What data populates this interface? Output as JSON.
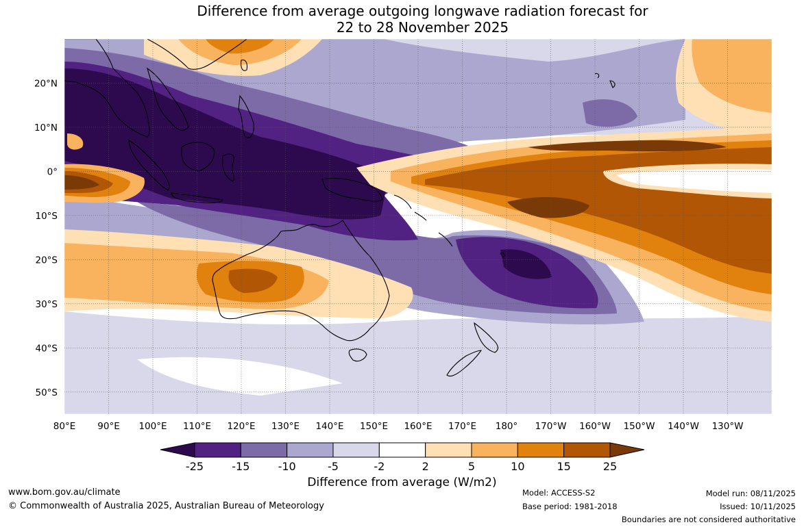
{
  "title": {
    "line1": "Difference from average outgoing longwave radiation forecast for",
    "line2": "22 to 28 November 2025"
  },
  "map": {
    "lon_labels": [
      "80°E",
      "90°E",
      "100°E",
      "110°E",
      "120°E",
      "130°E",
      "140°E",
      "150°E",
      "160°E",
      "170°E",
      "180°",
      "170°W",
      "160°W",
      "150°W",
      "140°W",
      "130°W"
    ],
    "lat_labels": [
      "20°N",
      "10°N",
      "0°",
      "10°S",
      "20°S",
      "30°S",
      "40°S",
      "50°S"
    ],
    "lon_range": [
      80,
      240
    ],
    "lat_range": [
      -55,
      30
    ]
  },
  "colorbar": {
    "title": "Difference from average (W/m2)",
    "tick_labels": [
      "-25",
      "-15",
      "-10",
      "-5",
      "-2",
      "2",
      "5",
      "10",
      "15",
      "25"
    ],
    "colors": [
      "#2d0a4e",
      "#522283",
      "#7d6ba8",
      "#aca7cf",
      "#d8d8ea",
      "#ffffff",
      "#fee0b4",
      "#f9b35f",
      "#e1820e",
      "#b05605",
      "#7a3a08"
    ]
  },
  "footer": {
    "website": "www.bom.gov.au/climate",
    "copyright": "© Commonwealth of Australia 2025, Australian Bureau of Meteorology",
    "model": "Model: ACCESS-S2",
    "base_period": "Base period: 1981-2018",
    "model_run": "Model run: 08/11/2025",
    "issued": "Issued: 10/11/2025",
    "boundaries": "Boundaries are not considered authoritative"
  }
}
